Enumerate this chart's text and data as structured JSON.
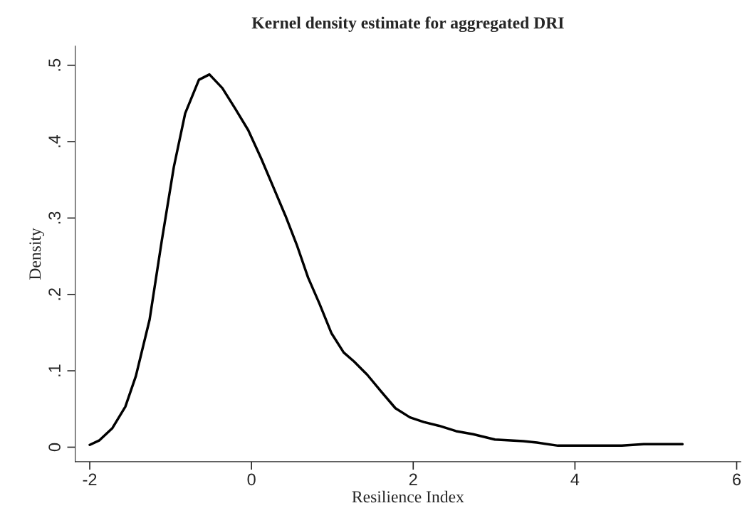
{
  "chart_data": {
    "type": "line",
    "title": "Kernel density estimate for aggregated DRI",
    "xlabel": "Resilience Index",
    "ylabel": "Density",
    "x": [
      -2,
      -1.88,
      -1.72,
      -1.56,
      -1.43,
      -1.26,
      -1.11,
      -0.96,
      -0.82,
      -0.65,
      -0.52,
      -0.36,
      -0.2,
      -0.04,
      0.12,
      0.28,
      0.42,
      0.56,
      0.7,
      0.84,
      0.99,
      1.14,
      1.27,
      1.43,
      1.61,
      1.78,
      1.96,
      2.13,
      2.32,
      2.53,
      2.74,
      3.01,
      3.36,
      3.53,
      3.79,
      4.32,
      4.58,
      4.85,
      5.33
    ],
    "series": [
      {
        "color": "#000000",
        "values": [
          0.003,
          0.009,
          0.025,
          0.053,
          0.093,
          0.167,
          0.27,
          0.367,
          0.437,
          0.481,
          0.488,
          0.47,
          0.443,
          0.415,
          0.378,
          0.338,
          0.303,
          0.265,
          0.222,
          0.188,
          0.149,
          0.124,
          0.112,
          0.095,
          0.072,
          0.051,
          0.039,
          0.033,
          0.028,
          0.021,
          0.017,
          0.01,
          0.008,
          0.006,
          0.002,
          0.002,
          0.002,
          0.004,
          0.004
        ]
      }
    ],
    "xlim": [
      -2.18,
      6.05
    ],
    "ylim": [
      -0.019,
      0.525
    ],
    "xticks": [
      -2,
      0,
      2,
      4,
      6
    ],
    "yticks": [
      {
        "value": 0,
        "label": "0"
      },
      {
        "value": 0.1,
        "label": ".1"
      },
      {
        "value": 0.2,
        "label": ".2"
      },
      {
        "value": 0.3,
        "label": ".3"
      },
      {
        "value": 0.4,
        "label": ".4"
      },
      {
        "value": 0.5,
        "label": ".5"
      }
    ],
    "grid": false,
    "legend": false,
    "marker": "none",
    "line_style": "solid"
  }
}
